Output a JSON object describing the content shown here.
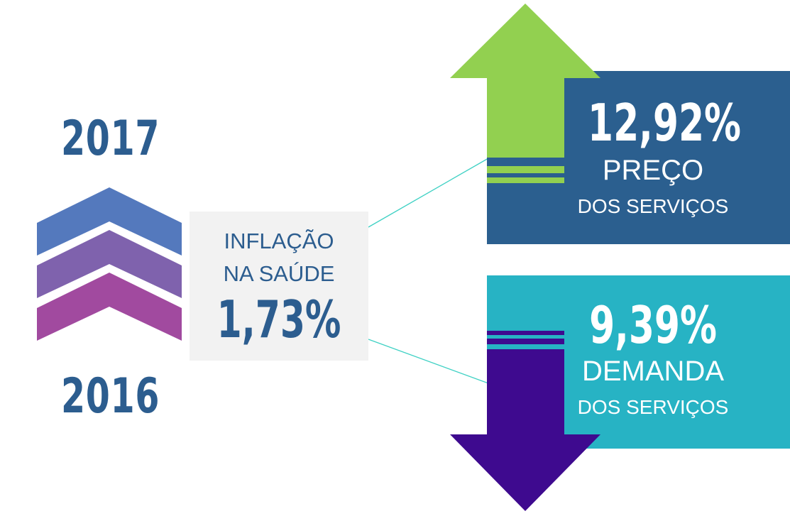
{
  "years": {
    "top": "2017",
    "bottom": "2016"
  },
  "center": {
    "line1": "INFLAÇÃO",
    "line2": "NA SAÚDE",
    "value": "1,73%"
  },
  "top_metric": {
    "value": "12,92%",
    "label_line1": "PREÇO",
    "label_line2": "DOS SERVIÇOS",
    "direction": "up",
    "arrow_color": "#92d050",
    "box_color": "#2b5f8f"
  },
  "bottom_metric": {
    "value": "9,39%",
    "label_line1": "DEMANDA",
    "label_line2": "DOS SERVIÇOS",
    "direction": "down",
    "arrow_color": "#3e0a8f",
    "box_color": "#27b3c4"
  },
  "colors": {
    "primary_text": "#2c5d8f",
    "chevron_top": "#5479bd",
    "chevron_middle": "#7f62ad",
    "chevron_bottom": "#a14a9f",
    "connector": "#3fd1c4"
  }
}
